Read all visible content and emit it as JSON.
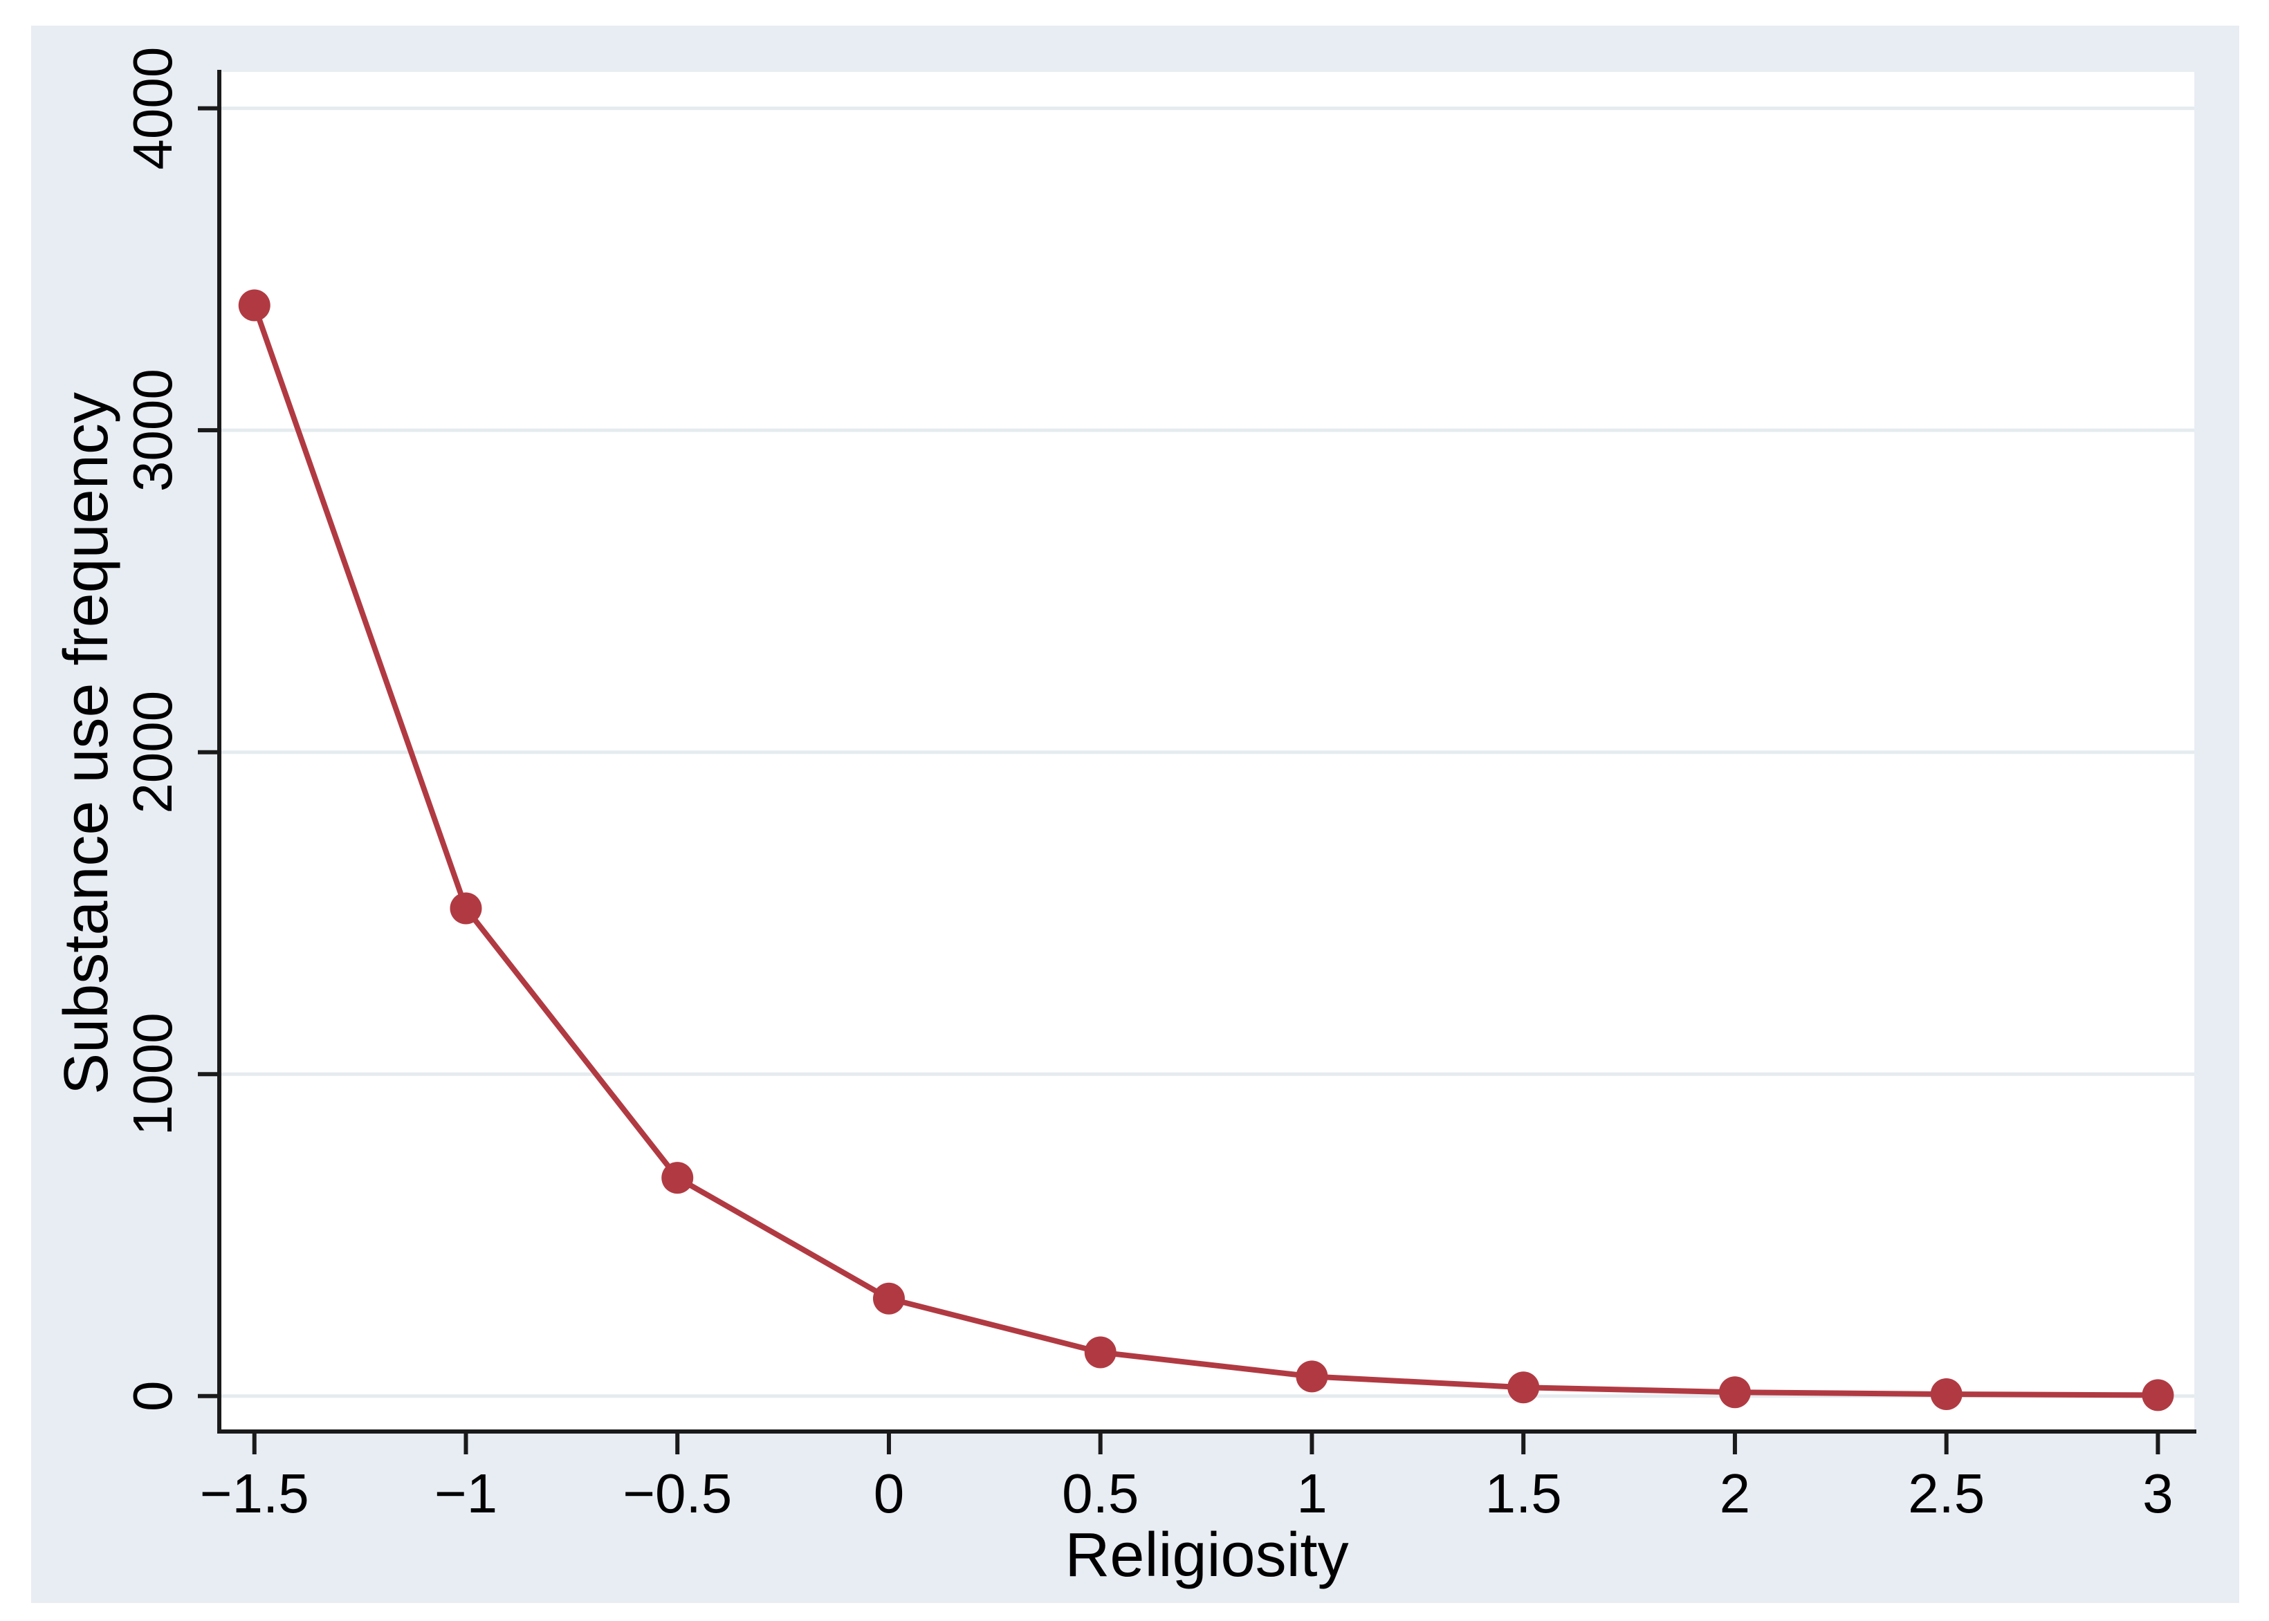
{
  "chart_data": {
    "type": "line",
    "title": "",
    "xlabel": "Religiosity",
    "ylabel": "Substance use frequency",
    "series": [
      {
        "name": "Substance use frequency",
        "x": [
          -1.5,
          -1,
          -0.5,
          0,
          0.5,
          1,
          1.5,
          2,
          2.5,
          3
        ],
        "y": [
          3388,
          1515,
          678,
          303,
          136,
          61,
          27,
          12,
          6,
          3
        ]
      }
    ],
    "x_ticks": {
      "values": [
        -1.5,
        -1,
        -0.5,
        0,
        0.5,
        1,
        1.5,
        2,
        2.5,
        3
      ],
      "labels": [
        "−1.5",
        "−1",
        "−0.5",
        "0",
        "0.5",
        "1",
        "1.5",
        "2",
        "2.5",
        "3"
      ]
    },
    "y_ticks": {
      "values": [
        0,
        1000,
        2000,
        3000,
        4000
      ],
      "labels": [
        "0",
        "1000",
        "2000",
        "3000",
        "4000"
      ]
    },
    "xlim": [
      -1.583,
      3.086
    ],
    "ylim": [
      -110,
      4113
    ],
    "grid": "horizontal-at-y-ticks",
    "legend": "none",
    "colors": {
      "line": "#b13a42",
      "marker": "#b13a42",
      "canvas_background": "#e8edf3",
      "plot_background": "#ffffff",
      "grid": "#e5ebef",
      "axis": "#1a1a1a",
      "text": "#000000"
    }
  }
}
